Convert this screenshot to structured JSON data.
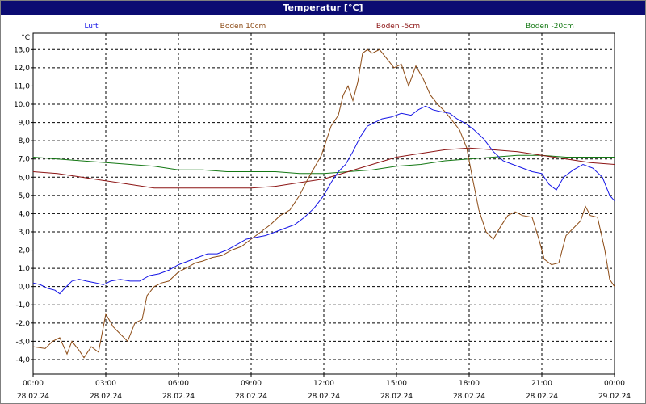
{
  "window": {
    "title": "Temperatur [°C]"
  },
  "chart_data": {
    "type": "line",
    "title": "Temperatur [°C]",
    "ylabel": "°C",
    "xlabel": "",
    "ylim": [
      -4.8,
      13.9
    ],
    "xlim_hours": [
      0,
      24
    ],
    "grid": true,
    "legend_position": "top",
    "y_ticks": [
      "-4,0",
      "-3,0",
      "-2,0",
      "-1,0",
      "0,0",
      "1,0",
      "2,0",
      "3,0",
      "4,0",
      "5,0",
      "6,0",
      "7,0",
      "8,0",
      "9,0",
      "10,0",
      "11,0",
      "12,0",
      "13,0"
    ],
    "x_ticks": [
      {
        "time": "00:00",
        "date": "28.02.24"
      },
      {
        "time": "03:00",
        "date": "28.02.24"
      },
      {
        "time": "06:00",
        "date": "28.02.24"
      },
      {
        "time": "09:00",
        "date": "28.02.24"
      },
      {
        "time": "12:00",
        "date": "28.02.24"
      },
      {
        "time": "15:00",
        "date": "28.02.24"
      },
      {
        "time": "18:00",
        "date": "28.02.24"
      },
      {
        "time": "21:00",
        "date": "28.02.24"
      },
      {
        "time": "00:00",
        "date": "29.02.24"
      }
    ],
    "x_unit": "hours since 28.02.24 00:00",
    "series": [
      {
        "name": "Luft",
        "color": "#1414e6",
        "points": [
          [
            0,
            0.2
          ],
          [
            0.3,
            0.1
          ],
          [
            0.6,
            -0.1
          ],
          [
            0.9,
            -0.2
          ],
          [
            1.1,
            -0.4
          ],
          [
            1.3,
            -0.1
          ],
          [
            1.6,
            0.3
          ],
          [
            1.9,
            0.4
          ],
          [
            2.2,
            0.3
          ],
          [
            2.6,
            0.2
          ],
          [
            2.9,
            0.1
          ],
          [
            3.2,
            0.3
          ],
          [
            3.6,
            0.4
          ],
          [
            4.0,
            0.3
          ],
          [
            4.4,
            0.3
          ],
          [
            4.8,
            0.6
          ],
          [
            5.2,
            0.7
          ],
          [
            5.6,
            0.9
          ],
          [
            6.0,
            1.2
          ],
          [
            6.4,
            1.4
          ],
          [
            6.8,
            1.6
          ],
          [
            7.2,
            1.8
          ],
          [
            7.6,
            1.8
          ],
          [
            8.0,
            2.0
          ],
          [
            8.4,
            2.3
          ],
          [
            8.8,
            2.6
          ],
          [
            9.2,
            2.7
          ],
          [
            9.6,
            2.8
          ],
          [
            10.0,
            3.0
          ],
          [
            10.4,
            3.2
          ],
          [
            10.8,
            3.4
          ],
          [
            11.2,
            3.8
          ],
          [
            11.6,
            4.3
          ],
          [
            12.0,
            5.0
          ],
          [
            12.3,
            5.7
          ],
          [
            12.6,
            6.3
          ],
          [
            12.9,
            6.7
          ],
          [
            13.2,
            7.4
          ],
          [
            13.5,
            8.2
          ],
          [
            13.8,
            8.8
          ],
          [
            14.1,
            9.0
          ],
          [
            14.4,
            9.2
          ],
          [
            14.8,
            9.3
          ],
          [
            15.2,
            9.5
          ],
          [
            15.6,
            9.4
          ],
          [
            15.9,
            9.7
          ],
          [
            16.2,
            9.9
          ],
          [
            16.5,
            9.7
          ],
          [
            16.8,
            9.6
          ],
          [
            17.2,
            9.5
          ],
          [
            17.5,
            9.2
          ],
          [
            17.9,
            8.9
          ],
          [
            18.2,
            8.6
          ],
          [
            18.6,
            8.1
          ],
          [
            19.0,
            7.4
          ],
          [
            19.4,
            6.9
          ],
          [
            19.8,
            6.7
          ],
          [
            20.2,
            6.5
          ],
          [
            20.6,
            6.3
          ],
          [
            21.0,
            6.2
          ],
          [
            21.3,
            5.6
          ],
          [
            21.6,
            5.3
          ],
          [
            21.9,
            6.0
          ],
          [
            22.3,
            6.4
          ],
          [
            22.7,
            6.7
          ],
          [
            23.1,
            6.5
          ],
          [
            23.5,
            6.0
          ],
          [
            23.8,
            5.0
          ],
          [
            24.0,
            4.7
          ]
        ]
      },
      {
        "name": "Boden 10cm",
        "color": "#8c4a14",
        "points": [
          [
            0,
            -3.3
          ],
          [
            0.5,
            -3.4
          ],
          [
            0.8,
            -3.0
          ],
          [
            1.1,
            -2.8
          ],
          [
            1.4,
            -3.7
          ],
          [
            1.6,
            -3.0
          ],
          [
            1.9,
            -3.5
          ],
          [
            2.1,
            -3.9
          ],
          [
            2.4,
            -3.3
          ],
          [
            2.7,
            -3.6
          ],
          [
            3.0,
            -1.5
          ],
          [
            3.3,
            -2.2
          ],
          [
            3.6,
            -2.6
          ],
          [
            3.9,
            -3.0
          ],
          [
            4.2,
            -2.0
          ],
          [
            4.5,
            -1.8
          ],
          [
            4.7,
            -0.5
          ],
          [
            5.0,
            0.0
          ],
          [
            5.3,
            0.2
          ],
          [
            5.6,
            0.3
          ],
          [
            6.0,
            0.8
          ],
          [
            6.3,
            1.0
          ],
          [
            6.7,
            1.3
          ],
          [
            7.0,
            1.4
          ],
          [
            7.4,
            1.6
          ],
          [
            7.8,
            1.7
          ],
          [
            8.2,
            2.0
          ],
          [
            8.6,
            2.2
          ],
          [
            9.0,
            2.6
          ],
          [
            9.4,
            3.0
          ],
          [
            9.8,
            3.4
          ],
          [
            10.2,
            3.9
          ],
          [
            10.6,
            4.2
          ],
          [
            11.0,
            5.0
          ],
          [
            11.3,
            5.8
          ],
          [
            11.6,
            6.5
          ],
          [
            11.9,
            7.2
          ],
          [
            12.1,
            8.0
          ],
          [
            12.3,
            8.8
          ],
          [
            12.6,
            9.4
          ],
          [
            12.8,
            10.5
          ],
          [
            13.0,
            11.0
          ],
          [
            13.2,
            10.2
          ],
          [
            13.4,
            11.2
          ],
          [
            13.6,
            12.8
          ],
          [
            13.8,
            13.0
          ],
          [
            14.0,
            12.8
          ],
          [
            14.3,
            13.0
          ],
          [
            14.6,
            12.5
          ],
          [
            14.9,
            12.0
          ],
          [
            15.2,
            12.2
          ],
          [
            15.5,
            11.0
          ],
          [
            15.8,
            12.1
          ],
          [
            16.1,
            11.4
          ],
          [
            16.4,
            10.5
          ],
          [
            16.7,
            10.0
          ],
          [
            17.0,
            9.6
          ],
          [
            17.3,
            9.1
          ],
          [
            17.6,
            8.6
          ],
          [
            17.9,
            7.6
          ],
          [
            18.1,
            6.2
          ],
          [
            18.4,
            4.2
          ],
          [
            18.7,
            3.0
          ],
          [
            19.0,
            2.6
          ],
          [
            19.3,
            3.3
          ],
          [
            19.6,
            3.9
          ],
          [
            19.9,
            4.1
          ],
          [
            20.2,
            3.9
          ],
          [
            20.6,
            3.8
          ],
          [
            20.9,
            2.5
          ],
          [
            21.1,
            1.5
          ],
          [
            21.4,
            1.2
          ],
          [
            21.7,
            1.3
          ],
          [
            22.0,
            2.8
          ],
          [
            22.3,
            3.2
          ],
          [
            22.6,
            3.6
          ],
          [
            22.8,
            4.4
          ],
          [
            23.0,
            3.9
          ],
          [
            23.3,
            3.8
          ],
          [
            23.6,
            2.0
          ],
          [
            23.8,
            0.4
          ],
          [
            24.0,
            0.0
          ]
        ]
      },
      {
        "name": "Boden -5cm",
        "color": "#8c1414",
        "points": [
          [
            0,
            6.3
          ],
          [
            1.0,
            6.2
          ],
          [
            2.0,
            6.0
          ],
          [
            3.0,
            5.8
          ],
          [
            4.0,
            5.6
          ],
          [
            5.0,
            5.4
          ],
          [
            6.0,
            5.4
          ],
          [
            7.0,
            5.4
          ],
          [
            8.0,
            5.4
          ],
          [
            9.0,
            5.4
          ],
          [
            10.0,
            5.5
          ],
          [
            11.0,
            5.7
          ],
          [
            12.0,
            5.9
          ],
          [
            13.0,
            6.3
          ],
          [
            14.0,
            6.7
          ],
          [
            15.0,
            7.1
          ],
          [
            16.0,
            7.3
          ],
          [
            17.0,
            7.5
          ],
          [
            18.0,
            7.6
          ],
          [
            19.0,
            7.5
          ],
          [
            20.0,
            7.4
          ],
          [
            21.0,
            7.2
          ],
          [
            22.0,
            7.0
          ],
          [
            23.0,
            6.8
          ],
          [
            24.0,
            6.7
          ]
        ]
      },
      {
        "name": "Boden -20cm",
        "color": "#147814",
        "points": [
          [
            0,
            7.1
          ],
          [
            1.0,
            7.0
          ],
          [
            2.0,
            6.9
          ],
          [
            3.0,
            6.8
          ],
          [
            4.0,
            6.7
          ],
          [
            5.0,
            6.6
          ],
          [
            6.0,
            6.4
          ],
          [
            7.0,
            6.4
          ],
          [
            8.0,
            6.3
          ],
          [
            9.0,
            6.3
          ],
          [
            10.0,
            6.3
          ],
          [
            11.0,
            6.2
          ],
          [
            12.0,
            6.2
          ],
          [
            13.0,
            6.3
          ],
          [
            14.0,
            6.4
          ],
          [
            15.0,
            6.6
          ],
          [
            16.0,
            6.7
          ],
          [
            17.0,
            6.9
          ],
          [
            18.0,
            7.0
          ],
          [
            19.0,
            7.1
          ],
          [
            20.0,
            7.2
          ],
          [
            21.0,
            7.2
          ],
          [
            22.0,
            7.1
          ],
          [
            23.0,
            7.1
          ],
          [
            24.0,
            7.1
          ]
        ]
      }
    ]
  }
}
